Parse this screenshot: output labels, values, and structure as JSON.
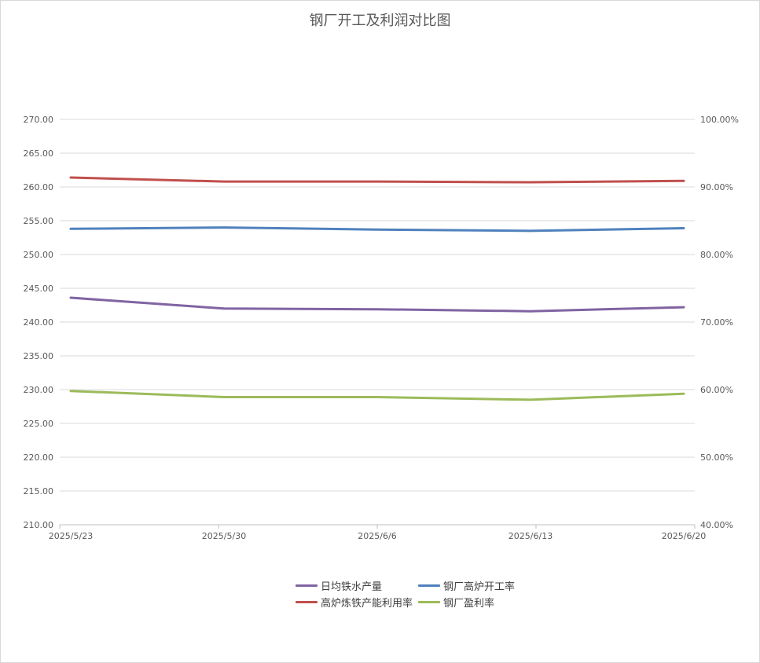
{
  "chart_data": {
    "type": "line",
    "title": "钢厂开工及利润对比图",
    "categories": [
      "2025/5/23",
      "2025/5/30",
      "2025/6/6",
      "2025/6/13",
      "2025/6/20"
    ],
    "y_left": {
      "range": [
        210,
        270
      ],
      "ticks": [
        "210.00",
        "215.00",
        "220.00",
        "225.00",
        "230.00",
        "235.00",
        "240.00",
        "245.00",
        "250.00",
        "255.00",
        "260.00",
        "265.00",
        "270.00"
      ]
    },
    "y_right": {
      "range": [
        0.4,
        1.0
      ],
      "ticks": [
        "40.00%",
        "50.00%",
        "60.00%",
        "70.00%",
        "80.00%",
        "90.00%",
        "100.00%"
      ]
    },
    "grid": true,
    "legend_position": "bottom",
    "series": [
      {
        "name": "日均铁水产量",
        "axis": "left",
        "color": "#8064a2",
        "values": [
          243.6,
          242.0,
          241.9,
          241.6,
          242.2
        ]
      },
      {
        "name": "钢厂高炉开工率",
        "axis": "right",
        "color": "#4f81bd",
        "values": [
          0.838,
          0.84,
          0.837,
          0.835,
          0.839
        ]
      },
      {
        "name": "高炉炼铁产能利用率",
        "axis": "right",
        "color": "#c0504d",
        "values": [
          0.914,
          0.908,
          0.908,
          0.907,
          0.909
        ]
      },
      {
        "name": "钢厂盈利率",
        "axis": "right",
        "color": "#9bbb59",
        "values": [
          0.598,
          0.589,
          0.589,
          0.585,
          0.594
        ]
      }
    ]
  }
}
